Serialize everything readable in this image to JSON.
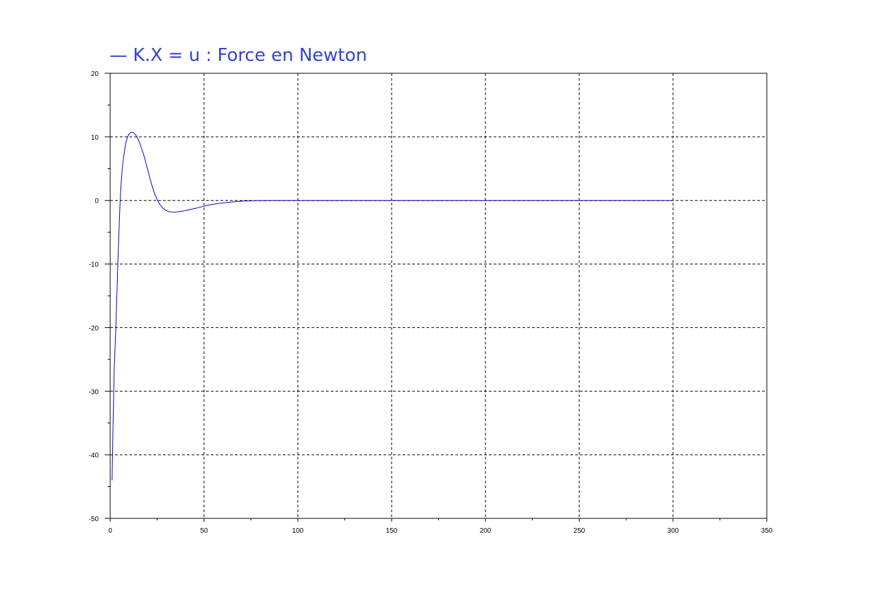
{
  "colors": {
    "accent": "#3344cc",
    "series_line": "#0000cc",
    "axes": "#000000",
    "grid": "#000000"
  },
  "chart_data": {
    "type": "line",
    "title": "— K.X = u : Force en Newton",
    "xlabel": "",
    "ylabel": "",
    "xlim": [
      0,
      350
    ],
    "ylim": [
      -50,
      20
    ],
    "grid": true,
    "grid_style": "dashed",
    "x_ticks": [
      0,
      50,
      100,
      150,
      200,
      250,
      300,
      350
    ],
    "y_ticks": [
      20,
      10,
      0,
      -10,
      -20,
      -30,
      -40,
      -50
    ],
    "x_tick_labels": [
      "0",
      "50",
      "100",
      "150",
      "200",
      "250",
      "300",
      "350"
    ],
    "y_tick_labels": [
      "20",
      "10",
      "0",
      "-10",
      "-20",
      "-30",
      "-40",
      "-50"
    ],
    "series": [
      {
        "color": "#0000cc",
        "x": [
          1,
          2,
          3,
          4,
          5,
          6,
          7,
          8,
          9,
          10,
          11,
          12,
          13,
          14,
          15,
          16,
          18,
          20,
          22,
          24,
          26,
          28,
          30,
          32,
          34,
          36,
          38,
          40,
          43,
          46,
          50,
          55,
          60,
          65,
          70,
          75,
          80,
          90,
          100,
          120,
          150,
          200,
          250,
          300
        ],
        "y": [
          -44,
          -28,
          -20,
          -10.5,
          -2,
          3.5,
          6.5,
          8.5,
          9.8,
          10.4,
          10.7,
          10.7,
          10.5,
          10.1,
          9.5,
          8.8,
          7,
          4.8,
          2.6,
          0.8,
          -0.4,
          -1.2,
          -1.6,
          -1.8,
          -1.85,
          -1.8,
          -1.7,
          -1.6,
          -1.4,
          -1.2,
          -0.9,
          -0.6,
          -0.4,
          -0.25,
          -0.12,
          -0.06,
          -0.02,
          0,
          0,
          0,
          0,
          0,
          0,
          0
        ]
      }
    ]
  }
}
